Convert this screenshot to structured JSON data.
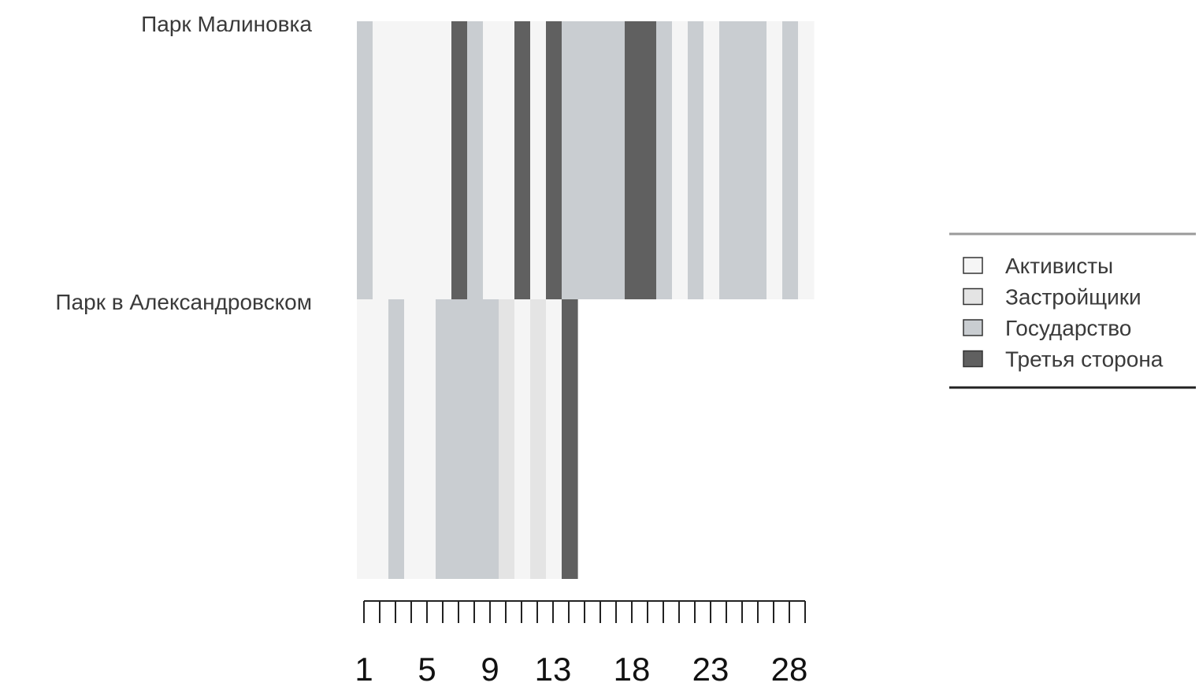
{
  "chart_data": {
    "type": "heatmap",
    "title": "",
    "xlabel": "",
    "ylabel": "",
    "x_ticks": [
      1,
      5,
      9,
      13,
      18,
      23,
      28
    ],
    "x_range": [
      1,
      29
    ],
    "rows": [
      {
        "label": "Парк Малиновка",
        "sequence": [
          "Государство",
          "Активисты",
          "Активисты",
          "Активисты",
          "Активисты",
          "Активисты",
          "Третья сторона",
          "Государство",
          "Активисты",
          "Активисты",
          "Третья сторона",
          "Активисты",
          "Третья сторона",
          "Государство",
          "Государство",
          "Государство",
          "Государство",
          "Третья сторона",
          "Третья сторона",
          "Государство",
          "Активисты",
          "Государство",
          "Активисты",
          "Государство",
          "Государство",
          "Государство",
          "Активисты",
          "Государство",
          "Активисты"
        ]
      },
      {
        "label": "Парк в Александровском",
        "sequence": [
          "Активисты",
          "Активисты",
          "Государство",
          "Активисты",
          "Активисты",
          "Государство",
          "Государство",
          "Государство",
          "Государство",
          "Застройщики",
          "Активисты",
          "Застройщики",
          "Активисты",
          "Третья сторона"
        ]
      }
    ],
    "legend": {
      "position": "right",
      "entries": [
        {
          "name": "Активисты",
          "color": "#f5f5f5"
        },
        {
          "name": "Застройщики",
          "color": "#e4e4e4"
        },
        {
          "name": "Государство",
          "color": "#c9cdd1"
        },
        {
          "name": "Третья сторона",
          "color": "#606060"
        }
      ]
    },
    "grid": false
  }
}
